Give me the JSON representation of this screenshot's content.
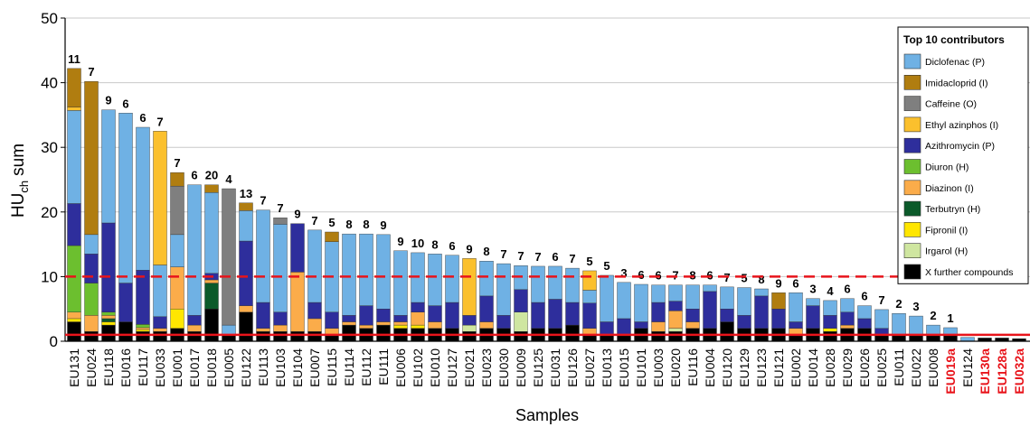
{
  "chart_data": {
    "type": "stacked_bar",
    "ylabel": {
      "text": "HU",
      "subscript": "ch",
      "suffix": "sum"
    },
    "xlabel": "Samples",
    "legend_title": "Top 10 contributors",
    "legend_position": "upper right",
    "grid": true,
    "ylim": [
      0,
      50
    ],
    "yticks": [
      0,
      10,
      20,
      30,
      40,
      50
    ],
    "categories": [
      "EU131",
      "EU024",
      "EU118",
      "EU016",
      "EU117",
      "EU033",
      "EU001",
      "EU017",
      "EU018",
      "EU005",
      "EU122",
      "EU113",
      "EU103",
      "EU104",
      "EU007",
      "EU115",
      "EU114",
      "EU112",
      "EU111",
      "EU006",
      "EU102",
      "EU010",
      "EU127",
      "EU021",
      "EU023",
      "EU030",
      "EU009",
      "EU125",
      "EU031",
      "EU126",
      "EU027",
      "EU013",
      "EU015",
      "EU101",
      "EU003",
      "EU020",
      "EU116",
      "EU004",
      "EU120",
      "EU129",
      "EU123",
      "EU121",
      "EU002",
      "EU014",
      "EU028",
      "EU029",
      "EU026",
      "EU025",
      "EU011",
      "EU022",
      "EU008",
      "EU019a",
      "EU124",
      "EU130a",
      "EU128a",
      "EU032a"
    ],
    "category_label_colors": [
      "#000",
      "#000",
      "#000",
      "#000",
      "#000",
      "#000",
      "#000",
      "#000",
      "#000",
      "#000",
      "#000",
      "#000",
      "#000",
      "#000",
      "#000",
      "#000",
      "#000",
      "#000",
      "#000",
      "#000",
      "#000",
      "#000",
      "#000",
      "#000",
      "#000",
      "#000",
      "#000",
      "#000",
      "#000",
      "#000",
      "#000",
      "#000",
      "#000",
      "#000",
      "#000",
      "#000",
      "#000",
      "#000",
      "#000",
      "#000",
      "#000",
      "#000",
      "#000",
      "#000",
      "#000",
      "#000",
      "#000",
      "#000",
      "#000",
      "#000",
      "#000",
      "#e8141b",
      "#000",
      "#e8141b",
      "#e8141b",
      "#e8141b"
    ],
    "bar_labels": [
      11,
      7,
      9,
      6,
      6,
      7,
      7,
      6,
      20,
      4,
      13,
      7,
      7,
      9,
      7,
      5,
      8,
      8,
      9,
      9,
      10,
      8,
      6,
      9,
      8,
      7,
      7,
      7,
      6,
      7,
      5,
      5,
      3,
      6,
      6,
      7,
      8,
      6,
      7,
      5,
      8,
      9,
      6,
      3,
      4,
      6,
      6,
      7,
      2,
      3,
      2,
      1,
      null,
      null,
      null,
      null
    ],
    "reference_lines": [
      {
        "value": 10,
        "color": "#e8141b",
        "dashed": true
      },
      {
        "value": 1,
        "color": "#e8141b",
        "dashed": false
      }
    ],
    "series": [
      {
        "name": "Diclofenac (P)",
        "color": "#6fb1e4",
        "values": [
          14.4,
          3,
          17.5,
          26.3,
          22.1,
          8,
          5,
          20.2,
          12.5,
          1.5,
          4.7,
          14.3,
          13.6,
          0,
          11.2,
          10.9,
          12.6,
          11.1,
          11.5,
          10,
          7.7,
          8,
          7.3,
          0,
          5.4,
          8,
          3.7,
          5.6,
          5.1,
          5.3,
          2,
          7.2,
          5.6,
          5.8,
          2.7,
          2.5,
          3.7,
          1,
          3.4,
          4.3,
          1.1,
          0,
          4.5,
          1.1,
          2.3,
          2.1,
          2,
          2.9,
          3.3,
          2.9,
          1.5,
          1.1,
          0.6,
          0,
          0,
          0
        ]
      },
      {
        "name": "Imidacloprid (I)",
        "color": "#b07d10",
        "values": [
          6,
          23.7,
          0,
          0,
          0,
          0,
          2.1,
          0,
          1.2,
          0,
          1.2,
          0,
          0,
          0,
          0,
          1.5,
          0,
          0,
          0,
          0,
          0,
          0,
          0,
          0,
          0,
          0,
          0,
          0,
          0,
          0,
          0,
          0,
          0,
          0,
          0,
          0,
          0,
          0,
          0,
          0,
          0,
          2.5,
          0,
          0,
          0,
          0,
          0,
          0,
          0,
          0,
          0,
          0,
          0,
          0,
          0,
          0
        ]
      },
      {
        "name": "Caffeine (O)",
        "color": "#7f7f7f",
        "values": [
          0,
          0,
          0,
          0,
          0,
          0,
          7.5,
          0,
          0,
          21.1,
          0,
          0,
          1,
          0,
          0,
          0,
          0,
          0,
          0,
          0,
          0,
          0,
          0,
          0,
          0,
          0,
          0,
          0,
          0,
          0,
          0,
          0,
          0,
          0,
          0,
          0,
          0,
          0,
          0,
          0,
          0,
          0,
          0,
          0,
          0,
          0,
          0,
          0,
          0,
          0,
          0,
          0,
          0,
          0,
          0,
          0
        ]
      },
      {
        "name": "Ethyl azinphos (I)",
        "color": "#fbc02d",
        "values": [
          0.5,
          0,
          0,
          0,
          0,
          20.7,
          0,
          0,
          0,
          0,
          0,
          0,
          0,
          0,
          0,
          0,
          0,
          0,
          0,
          0,
          0,
          0,
          0,
          8.8,
          0,
          0,
          0,
          0,
          0,
          0,
          3,
          0,
          0,
          0,
          0,
          0,
          0,
          0,
          0,
          0,
          0,
          0,
          0,
          0,
          0,
          0,
          0,
          0,
          0,
          0,
          0,
          0,
          0,
          0,
          0,
          0
        ]
      },
      {
        "name": "Azithromycin (P)",
        "color": "#2e2e9c",
        "values": [
          6.5,
          4.5,
          13.8,
          6,
          8.4,
          1.8,
          0,
          1.5,
          1,
          0,
          10,
          4,
          2,
          7.5,
          2.5,
          2.5,
          1,
          3,
          2,
          1,
          1.5,
          2.5,
          4,
          1.5,
          4,
          2,
          3.5,
          4,
          4.5,
          3.5,
          3.9,
          2,
          2.5,
          1,
          3,
          1.5,
          2,
          5.7,
          2,
          2,
          5,
          3,
          1,
          3.5,
          2,
          2,
          1.5,
          1,
          0,
          0,
          0,
          0,
          0,
          0,
          0,
          0
        ]
      },
      {
        "name": "Diuron (H)",
        "color": "#6cbf2f",
        "values": [
          10.3,
          5,
          0.5,
          0,
          0.5,
          0,
          0,
          0,
          0,
          0,
          0,
          0,
          0,
          0,
          0,
          0,
          0,
          0,
          0,
          0,
          0,
          0,
          0,
          0,
          0,
          0,
          0,
          0,
          0,
          0,
          0,
          0,
          0,
          0,
          0,
          0,
          0,
          0,
          0,
          0,
          0,
          0,
          0,
          0,
          0,
          0,
          0,
          0,
          0,
          0,
          0,
          0,
          0,
          0,
          0,
          0
        ]
      },
      {
        "name": "Diazinon (I)",
        "color": "#fbac4a",
        "values": [
          1,
          2.5,
          0.5,
          0,
          0.3,
          0.5,
          6.5,
          1,
          0.5,
          0,
          1,
          0.5,
          1,
          9.2,
          2,
          1,
          0.5,
          0.5,
          0.5,
          0.5,
          2,
          1,
          0,
          0,
          1,
          0,
          0,
          0,
          0,
          0,
          1,
          0,
          0,
          0,
          1.5,
          2.7,
          1,
          0,
          0,
          0,
          0,
          0,
          1,
          0,
          0,
          0.5,
          0,
          0,
          0,
          0,
          0,
          0,
          0,
          0,
          0,
          0
        ]
      },
      {
        "name": "Terbutryn (H)",
        "color": "#0b5a2a",
        "values": [
          0,
          0,
          0.5,
          0,
          0,
          0,
          0,
          0,
          4,
          0,
          0,
          0,
          0,
          0,
          0,
          0,
          0,
          0,
          0,
          0,
          0,
          0,
          0,
          0,
          0,
          0,
          0,
          0,
          0,
          0,
          0,
          0,
          0,
          0,
          0,
          0,
          0,
          0,
          0,
          0,
          0,
          0,
          0,
          0,
          0,
          0,
          0,
          0,
          0,
          0,
          0,
          0,
          0,
          0,
          0,
          0
        ]
      },
      {
        "name": "Fipronil (I)",
        "color": "#ffe600",
        "values": [
          0.5,
          0,
          0.5,
          0,
          0.3,
          0,
          3,
          0,
          0,
          0,
          0,
          0,
          0,
          0,
          0,
          0,
          0,
          0,
          0,
          0.5,
          0.5,
          0,
          0,
          0,
          0,
          0,
          0,
          0,
          0,
          0,
          0,
          0,
          0,
          0,
          0,
          0,
          0,
          0,
          0,
          0,
          0,
          0,
          0,
          0,
          0.5,
          0,
          0,
          0,
          0,
          0,
          0,
          0,
          0,
          0,
          0,
          0
        ]
      },
      {
        "name": "Irgarol (H)",
        "color": "#cfe6a0",
        "values": [
          0,
          0,
          0,
          0,
          0,
          0,
          0,
          0,
          0,
          0,
          0,
          0,
          0,
          0,
          0,
          0,
          0,
          0,
          0,
          0,
          0,
          0,
          0,
          1,
          0,
          0,
          3,
          0,
          0,
          0,
          0,
          0,
          0,
          0,
          0,
          0.5,
          0,
          0,
          0,
          0,
          0,
          0,
          0,
          0,
          0,
          0,
          0,
          0,
          0,
          0,
          0,
          0,
          0,
          0,
          0,
          0
        ]
      },
      {
        "name": "X further compounds",
        "color": "#000000",
        "values": [
          3,
          1.5,
          2.5,
          3,
          1.5,
          1.5,
          2,
          1.5,
          5,
          1,
          4.5,
          1.5,
          1.5,
          1.5,
          1.5,
          1,
          2.5,
          2,
          2.5,
          2,
          2,
          2,
          2,
          1.5,
          2,
          2,
          1.5,
          2,
          2,
          2.5,
          1,
          1,
          1,
          2,
          1.5,
          1.5,
          2,
          2,
          3,
          2,
          2,
          2,
          1,
          2,
          1.5,
          2,
          2,
          1,
          1,
          1,
          1,
          1,
          0,
          0.5,
          0.5,
          0.4
        ]
      }
    ]
  }
}
